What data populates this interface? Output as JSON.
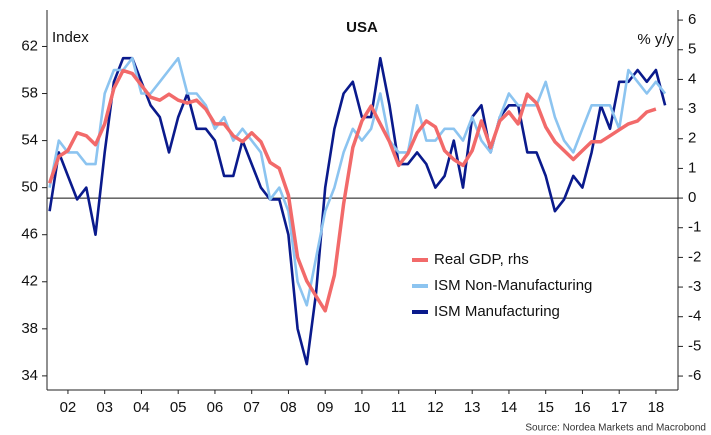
{
  "chart_data": {
    "type": "line",
    "title": "USA",
    "ylabel": "Index",
    "y2label": "% y/y",
    "source": "Source: Nordea Markets and Macrobond",
    "x": [
      2002,
      2002.25,
      2002.5,
      2002.75,
      2003,
      2003.25,
      2003.5,
      2003.75,
      2004,
      2004.25,
      2004.5,
      2004.75,
      2005,
      2005.25,
      2005.5,
      2005.75,
      2006,
      2006.25,
      2006.5,
      2006.75,
      2007,
      2007.25,
      2007.5,
      2007.75,
      2008,
      2008.25,
      2008.5,
      2008.75,
      2009,
      2009.25,
      2009.5,
      2009.75,
      2010,
      2010.25,
      2010.5,
      2010.75,
      2011,
      2011.25,
      2011.5,
      2011.75,
      2012,
      2012.25,
      2012.5,
      2012.75,
      2013,
      2013.25,
      2013.5,
      2013.75,
      2014,
      2014.25,
      2014.5,
      2014.75,
      2015,
      2015.25,
      2015.5,
      2015.75,
      2016,
      2016.25,
      2016.5,
      2016.75,
      2017,
      2017.25,
      2017.5,
      2017.75,
      2018,
      2018.25,
      2018.5,
      2018.75
    ],
    "xlim": [
      2001.93,
      2019.1
    ],
    "xticks": [
      {
        "value": 2002.5,
        "label": "02"
      },
      {
        "value": 2003.5,
        "label": "03"
      },
      {
        "value": 2004.5,
        "label": "04"
      },
      {
        "value": 2005.5,
        "label": "05"
      },
      {
        "value": 2006.5,
        "label": "06"
      },
      {
        "value": 2007.5,
        "label": "07"
      },
      {
        "value": 2008.5,
        "label": "08"
      },
      {
        "value": 2009.5,
        "label": "09"
      },
      {
        "value": 2010.5,
        "label": "10"
      },
      {
        "value": 2011.5,
        "label": "11"
      },
      {
        "value": 2012.5,
        "label": "12"
      },
      {
        "value": 2013.5,
        "label": "13"
      },
      {
        "value": 2014.5,
        "label": "14"
      },
      {
        "value": 2015.5,
        "label": "15"
      },
      {
        "value": 2016.5,
        "label": "16"
      },
      {
        "value": 2017.5,
        "label": "17"
      },
      {
        "value": 2018.5,
        "label": "18"
      }
    ],
    "ylim": [
      32.8,
      65.1
    ],
    "yticks": [
      34,
      38,
      42,
      46,
      50,
      54,
      58,
      62
    ],
    "y2lim": [
      -6.47,
      6.34
    ],
    "y2ticks": [
      -6,
      -5,
      -4,
      -3,
      -2,
      -1,
      0,
      1,
      2,
      3,
      4,
      5,
      6
    ],
    "y2_zero_line": true,
    "legend": "lower right",
    "series": [
      {
        "name": "Real GDP, rhs",
        "color": "#f26a6a",
        "axis": "y2",
        "values": [
          0.5,
          1.4,
          1.6,
          2.2,
          2.1,
          1.8,
          2.5,
          3.7,
          4.3,
          4.2,
          3.8,
          3.4,
          3.3,
          3.5,
          3.3,
          3.2,
          3.3,
          3.0,
          2.5,
          2.5,
          2.1,
          1.9,
          2.2,
          1.9,
          1.2,
          1.0,
          0.1,
          -2.0,
          -2.8,
          -3.3,
          -3.8,
          -2.6,
          -0.2,
          1.7,
          2.6,
          3.1,
          2.5,
          1.9,
          1.1,
          1.5,
          2.2,
          2.6,
          2.4,
          1.6,
          1.3,
          1.1,
          1.6,
          2.6,
          1.7,
          2.6,
          2.9,
          2.5,
          3.5,
          3.2,
          2.4,
          1.9,
          1.6,
          1.3,
          1.6,
          1.9,
          1.9,
          2.1,
          2.3,
          2.5,
          2.6,
          2.9,
          3.0,
          null
        ]
      },
      {
        "name": "ISM Non-Manufacturing",
        "color": "#8cc4f0",
        "values": [
          50,
          54,
          53,
          53,
          52,
          52,
          58,
          60,
          60,
          61,
          58,
          58,
          59,
          60,
          61,
          58,
          58,
          57,
          55,
          56,
          54,
          55,
          54,
          53,
          49,
          50,
          48,
          42,
          40,
          44,
          48,
          50,
          53,
          55,
          54,
          55,
          58,
          54,
          53,
          53,
          57,
          54,
          54,
          55,
          55,
          54,
          56,
          54,
          53,
          56,
          58,
          57,
          57,
          57,
          59,
          56,
          54,
          53,
          55,
          57,
          57,
          57,
          55,
          60,
          59,
          58,
          59,
          58
        ]
      },
      {
        "name": "ISM Manufacturing",
        "color": "#0a1a8c",
        "values": [
          48,
          53,
          51,
          49,
          50,
          46,
          53,
          59,
          61,
          61,
          59,
          57,
          56,
          53,
          56,
          58,
          55,
          55,
          54,
          51,
          51,
          54,
          52,
          50,
          49,
          49,
          46,
          38,
          35,
          41,
          50,
          55,
          58,
          59,
          56,
          56,
          61,
          57,
          52,
          52,
          53,
          52,
          50,
          51,
          54,
          50,
          56,
          57,
          53,
          56,
          57,
          57,
          53,
          53,
          51,
          48,
          49,
          51,
          50,
          53,
          57,
          55,
          59,
          59,
          60,
          59,
          60,
          57
        ]
      }
    ]
  }
}
